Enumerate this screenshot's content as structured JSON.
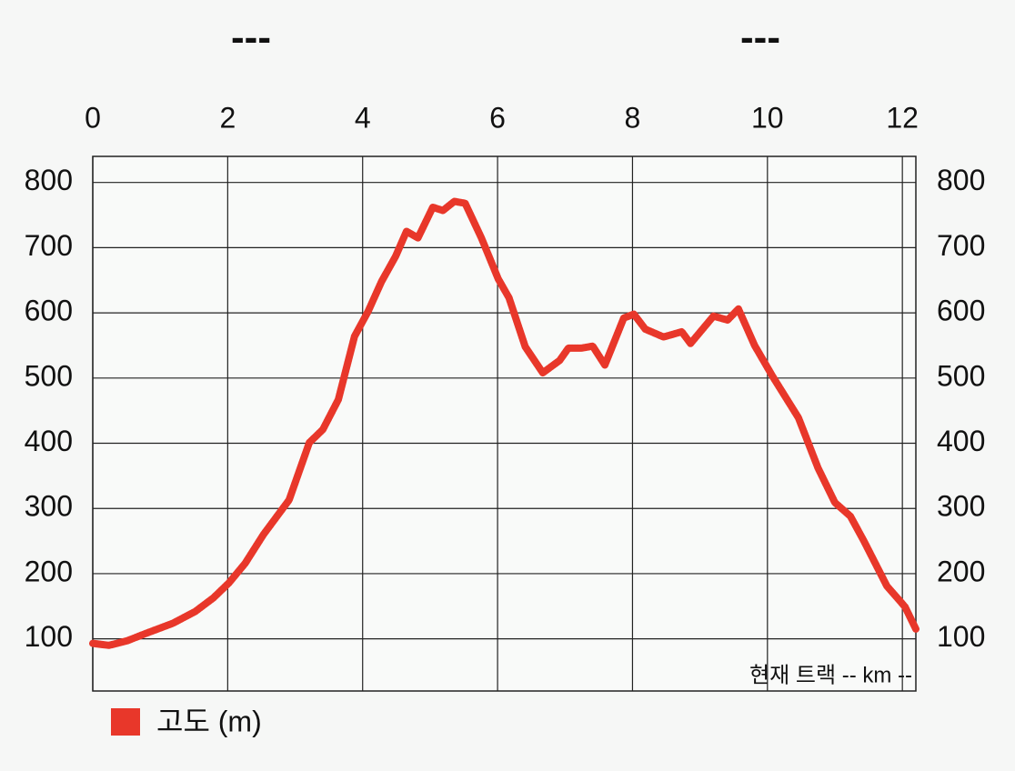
{
  "chart_data": {
    "type": "line",
    "annotations": [
      "---",
      "---",
      "현재 트랙 -- km --"
    ],
    "x": [
      0,
      0.24,
      0.51,
      0.78,
      1.19,
      1.52,
      1.79,
      2.02,
      2.26,
      2.53,
      2.91,
      3.21,
      3.41,
      3.64,
      3.88,
      4.08,
      4.28,
      4.49,
      4.65,
      4.82,
      5.04,
      5.19,
      5.36,
      5.52,
      5.76,
      6.01,
      6.17,
      6.41,
      6.67,
      6.92,
      7.05,
      7.25,
      7.41,
      7.59,
      7.68,
      7.87,
      8.02,
      8.19,
      8.46,
      8.73,
      8.86,
      9.2,
      9.41,
      9.57,
      9.81,
      10.08,
      10.46,
      10.75,
      11.0,
      11.23,
      11.43,
      11.77,
      12.04,
      12.2
    ],
    "series": [
      {
        "name": "고도 (m)",
        "color": "#e8372a",
        "values": [
          93,
          90,
          97,
          108,
          124,
          142,
          163,
          186,
          216,
          260,
          313,
          401,
          421,
          467,
          564,
          602,
          648,
          687,
          725,
          715,
          762,
          757,
          771,
          768,
          715,
          652,
          623,
          548,
          508,
          527,
          546,
          546,
          549,
          520,
          543,
          592,
          598,
          575,
          563,
          571,
          553,
          595,
          589,
          606,
          550,
          502,
          439,
          362,
          309,
          288,
          250,
          181,
          149,
          115
        ]
      }
    ],
    "xlim": [
      0,
      12.2
    ],
    "xticks": [
      0,
      2,
      4,
      6,
      8,
      10,
      12
    ],
    "ylim": [
      20,
      840
    ],
    "yticks": [
      100,
      200,
      300,
      400,
      500,
      600,
      700,
      800
    ],
    "y2lim": [
      20,
      840
    ],
    "y2ticks": [
      100,
      200,
      300,
      400,
      500,
      600,
      700,
      800
    ],
    "grid": true
  }
}
